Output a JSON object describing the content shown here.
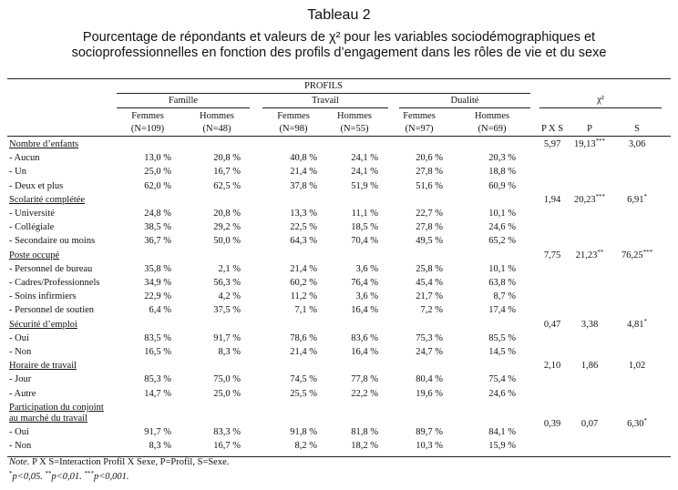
{
  "title": "Tableau 2",
  "subtitle_line1": "Pourcentage de répondants et valeurs de χ² pour les variables sociodémographiques et",
  "subtitle_line2": "socioprofessionnelles en fonction des profils d’engagement dans les rôles de vie et du sexe",
  "profils_label": "PROFILS",
  "groups": [
    "Famille",
    "Travail",
    "Dualité"
  ],
  "chi_label": "χ²",
  "columns": [
    {
      "sex": "Femmes",
      "n": "(N=109)"
    },
    {
      "sex": "Hommes",
      "n": "(N=48)"
    },
    {
      "sex": "Femmes",
      "n": "(N=98)"
    },
    {
      "sex": "Hommes",
      "n": "(N=55)"
    },
    {
      "sex": "Femmes",
      "n": "(N=97)"
    },
    {
      "sex": "Hommes",
      "n": "(N=69)"
    }
  ],
  "chi_columns": [
    "P X S",
    "P",
    "S"
  ],
  "sections": [
    {
      "label": "Nombre d’enfants",
      "chi": [
        "5,97",
        "19,13",
        "3,06"
      ],
      "sig": [
        "",
        "***",
        ""
      ],
      "rows": [
        {
          "label": "-  Aucun",
          "values": [
            "13,0 %",
            "20,8 %",
            "40,8 %",
            "24,1 %",
            "20,6 %",
            "20,3 %"
          ]
        },
        {
          "label": "-  Un",
          "values": [
            "25,0 %",
            "16,7 %",
            "21,4 %",
            "24,1 %",
            "27,8 %",
            "18,8 %"
          ]
        },
        {
          "label": "-  Deux et plus",
          "values": [
            "62,0 %",
            "62,5 %",
            "37,8 %",
            "51,9 %",
            "51,6 %",
            "60,9 %"
          ]
        }
      ]
    },
    {
      "label": "Scolarité complétée",
      "chi": [
        "1,94",
        "20,23",
        "6,91"
      ],
      "sig": [
        "",
        "***",
        "*"
      ],
      "rows": [
        {
          "label": "-  Université",
          "values": [
            "24,8 %",
            "20,8 %",
            "13,3 %",
            "11,1 %",
            "22,7 %",
            "10,1 %"
          ]
        },
        {
          "label": "-  Collégiale",
          "values": [
            "38,5 %",
            "29,2 %",
            "22,5 %",
            "18,5 %",
            "27,8 %",
            "24,6 %"
          ]
        },
        {
          "label": "-  Secondaire ou moins",
          "values": [
            "36,7 %",
            "50,0 %",
            "64,3 %",
            "70,4 %",
            "49,5 %",
            "65,2 %"
          ]
        }
      ]
    },
    {
      "label": "Poste occupé",
      "chi": [
        "7,75",
        "21,23",
        "76,25"
      ],
      "sig": [
        "",
        "**",
        "***"
      ],
      "rows": [
        {
          "label": "-  Personnel de bureau",
          "values": [
            "35,8 %",
            "2,1 %",
            "21,4 %",
            "3,6 %",
            "25,8 %",
            "10,1 %"
          ]
        },
        {
          "label": "-  Cadres/Professionnels",
          "values": [
            "34,9 %",
            "56,3 %",
            "60,2 %",
            "76,4 %",
            "45,4 %",
            "63,8 %"
          ]
        },
        {
          "label": "-  Soins infirmiers",
          "values": [
            "22,9 %",
            "4,2 %",
            "11,2 %",
            "3,6 %",
            "21,7 %",
            "8,7 %"
          ]
        },
        {
          "label": "-  Personnel de soutien",
          "values": [
            "6,4 %",
            "37,5 %",
            "7,1 %",
            "16,4 %",
            "7,2 %",
            "17,4 %"
          ]
        }
      ]
    },
    {
      "label": "Sécurité d’emploi",
      "chi": [
        "0,47",
        "3,38",
        "4,81"
      ],
      "sig": [
        "",
        "",
        "*"
      ],
      "rows": [
        {
          "label": "-  Oui",
          "values": [
            "83,5 %",
            "91,7 %",
            "78,6 %",
            "83,6 %",
            "75,3 %",
            "85,5 %"
          ]
        },
        {
          "label": "-  Non",
          "values": [
            "16,5 %",
            "8,3 %",
            "21,4 %",
            "16,4 %",
            "24,7 %",
            "14,5 %"
          ]
        }
      ]
    },
    {
      "label": "Horaire de travail",
      "chi": [
        "2,10",
        "1,86",
        "1,02"
      ],
      "sig": [
        "",
        "",
        ""
      ],
      "rows": [
        {
          "label": "-  Jour",
          "values": [
            "85,3 %",
            "75,0 %",
            "74,5 %",
            "77,8 %",
            "80,4 %",
            "75,4 %"
          ]
        },
        {
          "label": "-  Autre",
          "values": [
            "14,7 %",
            "25,0 %",
            "25,5 %",
            "22,2 %",
            "19,6 %",
            "24,6 %"
          ]
        }
      ]
    },
    {
      "label": "Participation du conjoint",
      "label2": "au marché du travail",
      "chi": [
        "0,39",
        "0,07",
        "6,30"
      ],
      "sig": [
        "",
        "",
        "*"
      ],
      "rows": [
        {
          "label": "-  Oui",
          "values": [
            "91,7 %",
            "83,3 %",
            "91,8 %",
            "81,8 %",
            "89,7 %",
            "84,1 %"
          ]
        },
        {
          "label": "-  Non",
          "values": [
            "8,3 %",
            "16,7 %",
            "8,2 %",
            "18,2 %",
            "10,3 %",
            "15,9 %"
          ]
        }
      ]
    }
  ],
  "note_prefix": "Note.",
  "note_text": " P X S=Interaction Profil X Sexe, P=Profil, S=Sexe.",
  "footnote": {
    "s1": "*",
    "t1": "p<0,05.  ",
    "s2": "**",
    "t2": "p<0,01.  ",
    "s3": "***",
    "t3": "p<0,001."
  }
}
